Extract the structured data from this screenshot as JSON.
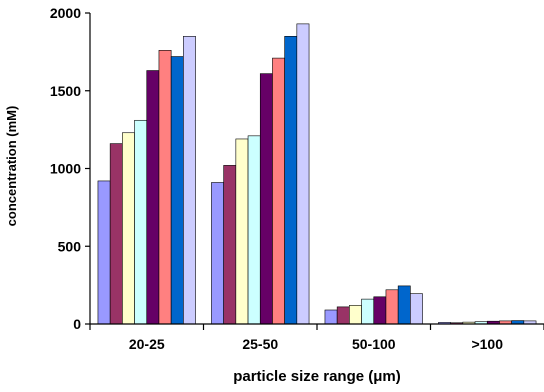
{
  "chart_data": {
    "type": "bar",
    "title": "",
    "xlabel": "particle size range (μm)",
    "ylabel": "concentration (mM)",
    "ylim": [
      0,
      2000
    ],
    "yticks": [
      0,
      500,
      1000,
      1500,
      2000
    ],
    "grid": false,
    "legend": "none",
    "categories": [
      "20-25",
      "25-50",
      "50-100",
      ">100"
    ],
    "series": [
      {
        "color": "#9999ff",
        "values": [
          920,
          910,
          90,
          10
        ]
      },
      {
        "color": "#993366",
        "values": [
          1160,
          1020,
          110,
          8
        ]
      },
      {
        "color": "#ffffcc",
        "values": [
          1230,
          1190,
          120,
          12
        ]
      },
      {
        "color": "#ccffff",
        "values": [
          1310,
          1210,
          160,
          15
        ]
      },
      {
        "color": "#660066",
        "values": [
          1630,
          1610,
          175,
          18
        ]
      },
      {
        "color": "#ff8080",
        "values": [
          1760,
          1710,
          220,
          20
        ]
      },
      {
        "color": "#0066cc",
        "values": [
          1720,
          1850,
          245,
          22
        ]
      },
      {
        "color": "#ccccff",
        "values": [
          1850,
          1930,
          195,
          20
        ]
      }
    ]
  }
}
